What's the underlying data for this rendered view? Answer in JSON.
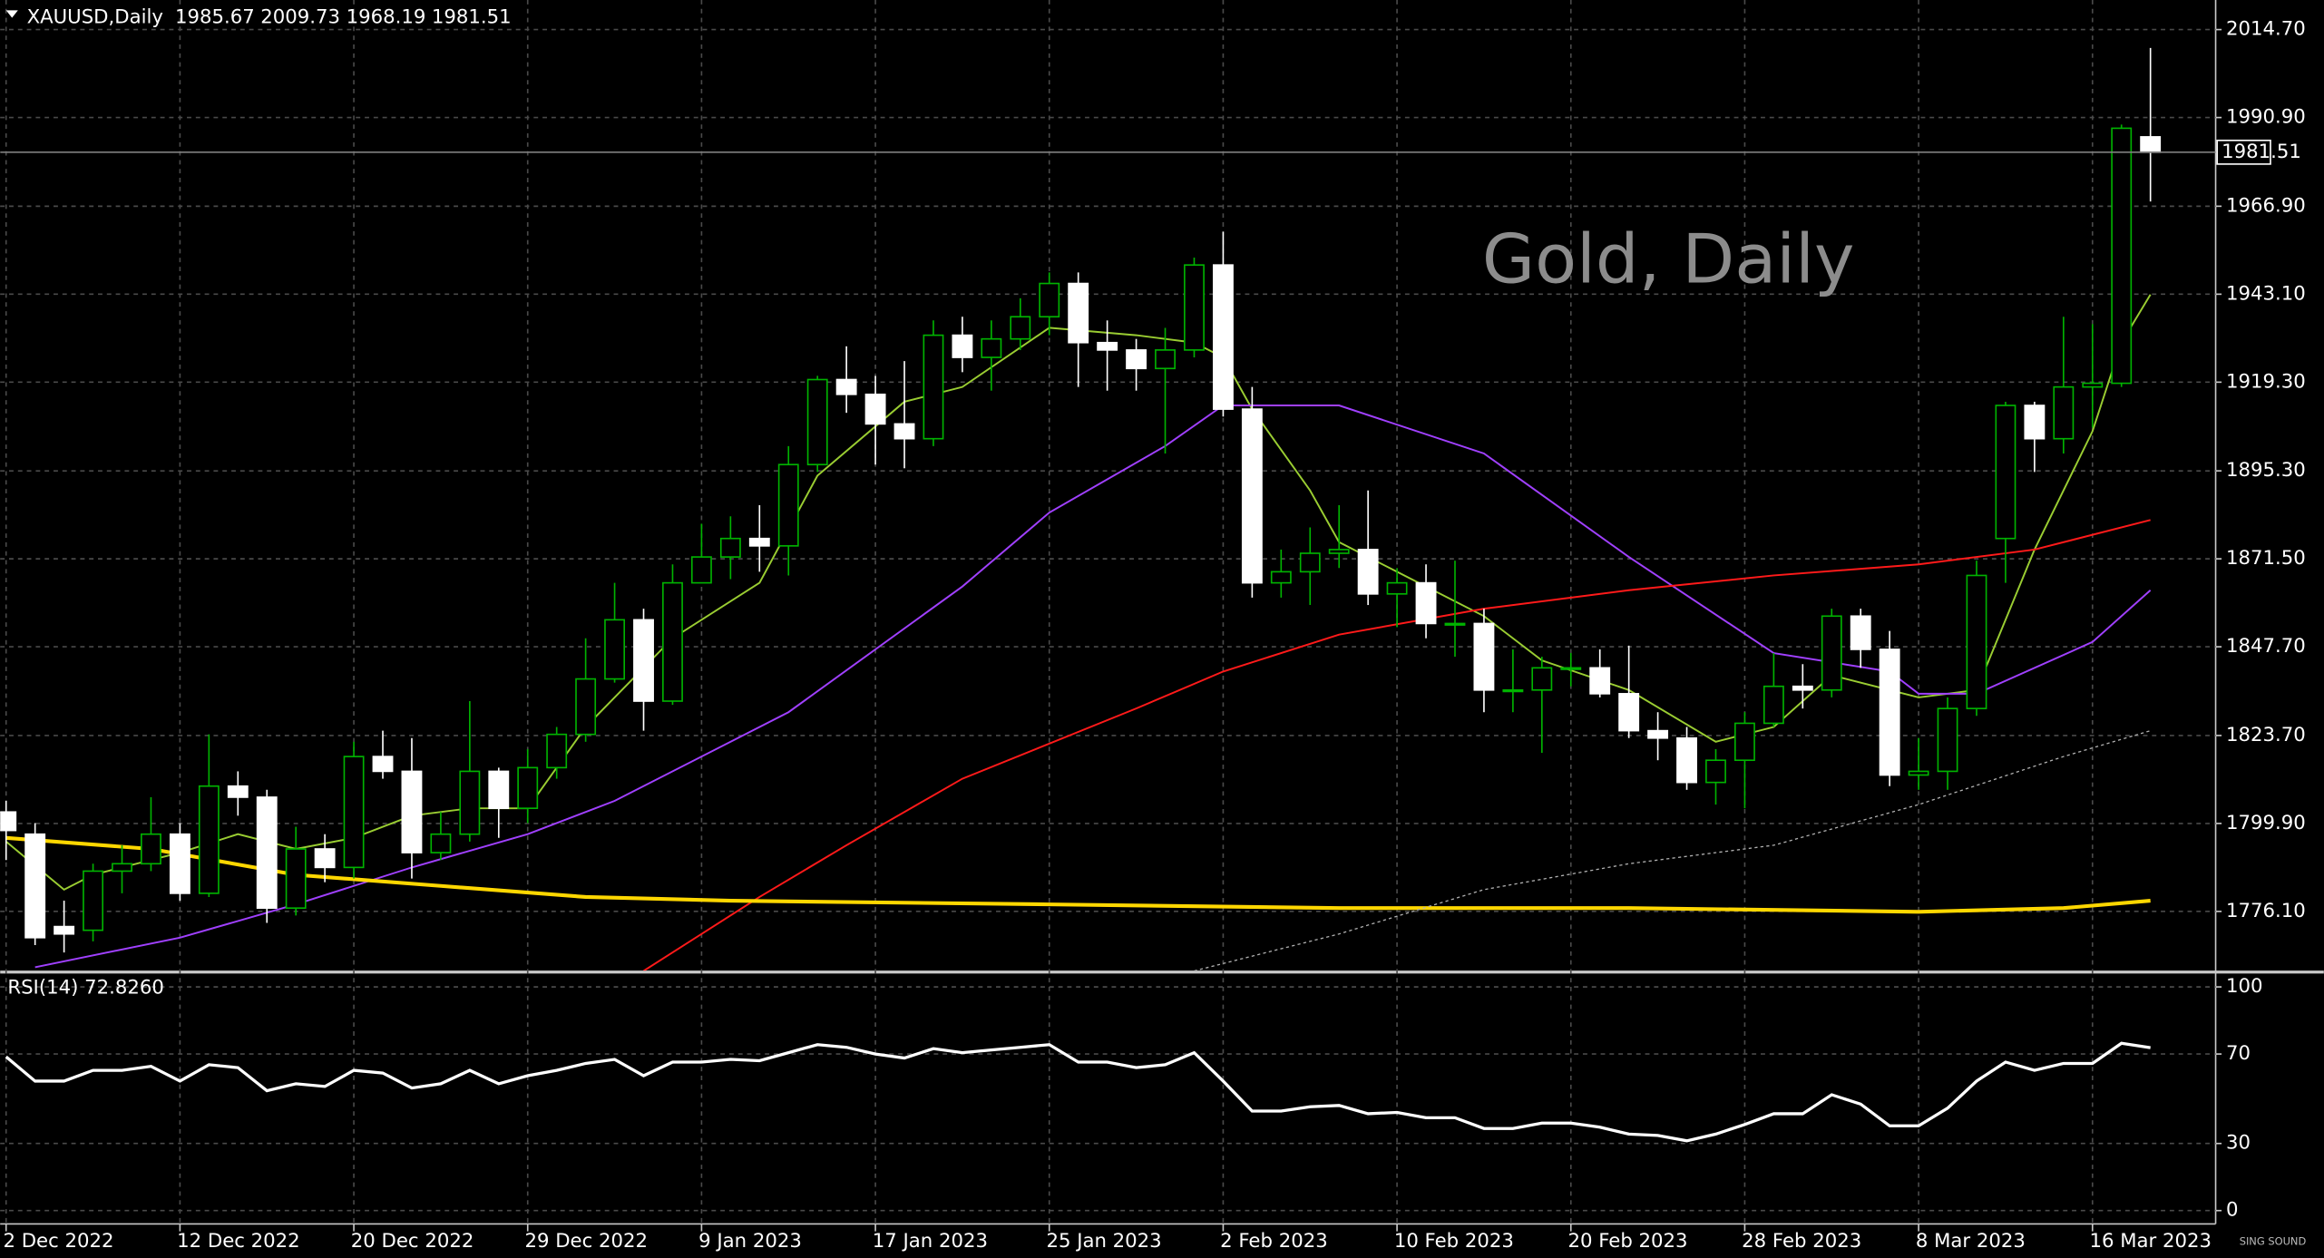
{
  "chart_data": {
    "type": "candlestick",
    "header": {
      "symbol": "XAUUSD,Daily"
    },
    "watermark": "Gold, Daily",
    "categories": [
      "2022-12-02",
      "2022-12-05",
      "2022-12-06",
      "2022-12-07",
      "2022-12-08",
      "2022-12-09",
      "2022-12-12",
      "2022-12-13",
      "2022-12-14",
      "2022-12-15",
      "2022-12-16",
      "2022-12-19",
      "2022-12-20",
      "2022-12-21",
      "2022-12-22",
      "2022-12-23",
      "2022-12-27",
      "2022-12-28",
      "2022-12-29",
      "2022-12-30",
      "2023-01-03",
      "2023-01-04",
      "2023-01-05",
      "2023-01-06",
      "2023-01-09",
      "2023-01-10",
      "2023-01-11",
      "2023-01-12",
      "2023-01-13",
      "2023-01-16",
      "2023-01-17",
      "2023-01-18",
      "2023-01-19",
      "2023-01-20",
      "2023-01-23",
      "2023-01-24",
      "2023-01-25",
      "2023-01-26",
      "2023-01-27",
      "2023-01-30",
      "2023-01-31",
      "2023-02-01",
      "2023-02-02",
      "2023-02-03",
      "2023-02-06",
      "2023-02-07",
      "2023-02-08",
      "2023-02-09",
      "2023-02-10",
      "2023-02-13",
      "2023-02-14",
      "2023-02-15",
      "2023-02-16",
      "2023-02-17",
      "2023-02-20",
      "2023-02-21",
      "2023-02-22",
      "2023-02-23",
      "2023-02-24",
      "2023-02-27",
      "2023-02-28",
      "2023-03-01",
      "2023-03-02",
      "2023-03-03",
      "2023-03-06",
      "2023-03-07",
      "2023-03-08",
      "2023-03-09",
      "2023-03-10",
      "2023-03-13",
      "2023-03-14",
      "2023-03-15",
      "2023-03-16",
      "2023-03-17",
      "2023-03-20"
    ],
    "open": [
      1803,
      1797,
      1772,
      1771,
      1787,
      1789,
      1797,
      1781,
      1810,
      1807,
      1777,
      1793,
      1788,
      1818,
      1814,
      1792,
      1797,
      1814,
      1804,
      1815,
      1824,
      1839,
      1855,
      1833,
      1865,
      1872,
      1877,
      1875,
      1897,
      1920,
      1916,
      1908,
      1904,
      1932,
      1926,
      1931,
      1937,
      1946,
      1930,
      1928,
      1923,
      1928,
      1951,
      1912,
      1865,
      1868,
      1873,
      1874,
      1862,
      1865,
      1854,
      1854,
      1836,
      1836,
      1842,
      1842,
      1835,
      1825,
      1823,
      1811,
      1817,
      1827,
      1837,
      1836,
      1856,
      1847,
      1813,
      1814,
      1831,
      1877,
      1913,
      1904,
      1918,
      1919,
      1985.67
    ],
    "high": [
      1806,
      1800,
      1779,
      1789,
      1794,
      1807,
      1800,
      1824,
      1814,
      1809,
      1799,
      1797,
      1822,
      1825,
      1823,
      1803,
      1833,
      1815,
      1820,
      1826,
      1850,
      1865,
      1858,
      1870,
      1881,
      1883,
      1886,
      1902,
      1921,
      1929,
      1921,
      1925,
      1936,
      1937,
      1936,
      1942,
      1949,
      1949,
      1936,
      1931,
      1934,
      1953,
      1960,
      1918,
      1874,
      1880,
      1886,
      1890,
      1869,
      1870,
      1871,
      1858,
      1847,
      1845,
      1846,
      1847,
      1848,
      1830,
      1826,
      1820,
      1830,
      1846,
      1843,
      1858,
      1858,
      1852,
      1823,
      1834,
      1871,
      1914,
      1914,
      1937,
      1935,
      1989,
      2009.73
    ],
    "low": [
      1790,
      1767,
      1765,
      1768,
      1781,
      1787,
      1779,
      1780,
      1802,
      1773,
      1775,
      1784,
      1785,
      1812,
      1785,
      1790,
      1795,
      1796,
      1800,
      1812,
      1822,
      1838,
      1825,
      1832,
      1865,
      1866,
      1868,
      1867,
      1895,
      1911,
      1897,
      1896,
      1902,
      1922,
      1917,
      1928,
      1932,
      1918,
      1917,
      1917,
      1900,
      1926,
      1910,
      1861,
      1861,
      1859,
      1869,
      1859,
      1853,
      1850,
      1845,
      1830,
      1830,
      1819,
      1837,
      1834,
      1823,
      1817,
      1809,
      1805,
      1804,
      1826,
      1831,
      1834,
      1842,
      1810,
      1809,
      1809,
      1829,
      1865,
      1895,
      1900,
      1907,
      1918,
      1968.19
    ],
    "close": [
      1798,
      1769,
      1770,
      1787,
      1789,
      1797,
      1781,
      1810,
      1807,
      1777,
      1793,
      1788,
      1818,
      1814,
      1792,
      1797,
      1814,
      1804,
      1815,
      1824,
      1839,
      1855,
      1833,
      1865,
      1872,
      1877,
      1875,
      1897,
      1920,
      1916,
      1908,
      1904,
      1932,
      1926,
      1931,
      1937,
      1946,
      1930,
      1928,
      1923,
      1928,
      1951,
      1912,
      1865,
      1868,
      1873,
      1874,
      1862,
      1865,
      1854,
      1854,
      1836,
      1836,
      1842,
      1842,
      1835,
      1825,
      1823,
      1811,
      1817,
      1827,
      1837,
      1836,
      1856,
      1847,
      1813,
      1814,
      1831,
      1867,
      1913,
      1904,
      1918,
      1919,
      1988,
      1981.51
    ],
    "up_color": "#00b300",
    "down_color": "#ffffff",
    "xticks": [
      {
        "value": "2022-12-02",
        "label": "2 Dec 2022"
      },
      {
        "value": "2022-12-12",
        "label": "12 Dec 2022"
      },
      {
        "value": "2022-12-20",
        "label": "20 Dec 2022"
      },
      {
        "value": "2022-12-29",
        "label": "29 Dec 2022"
      },
      {
        "value": "2023-01-09",
        "label": "9 Jan 2023"
      },
      {
        "value": "2023-01-17",
        "label": "17 Jan 2023"
      },
      {
        "value": "2023-01-25",
        "label": "25 Jan 2023"
      },
      {
        "value": "2023-02-02",
        "label": "2 Feb 2023"
      },
      {
        "value": "2023-02-10",
        "label": "10 Feb 2023"
      },
      {
        "value": "2023-02-20",
        "label": "20 Feb 2023"
      },
      {
        "value": "2023-02-28",
        "label": "28 Feb 2023"
      },
      {
        "value": "2023-03-08",
        "label": "8 Mar 2023"
      },
      {
        "value": "2023-03-16",
        "label": "16 Mar 2023"
      }
    ],
    "ylim": [
      1760.1,
      2022.7
    ],
    "yticks": [
      {
        "value": 2014.7,
        "label": "2014.70"
      },
      {
        "value": 1990.9,
        "label": "1990.90"
      },
      {
        "value": 1966.9,
        "label": "1966.90"
      },
      {
        "value": 1943.1,
        "label": "1943.10"
      },
      {
        "value": 1919.3,
        "label": "1919.30"
      },
      {
        "value": 1895.3,
        "label": "1895.30"
      },
      {
        "value": 1871.5,
        "label": "1871.50"
      },
      {
        "value": 1847.7,
        "label": "1847.70"
      },
      {
        "value": 1823.7,
        "label": "1823.70"
      },
      {
        "value": 1799.9,
        "label": "1799.90"
      },
      {
        "value": 1776.1,
        "label": "1776.10"
      }
    ],
    "grid": true,
    "current_price_line": true,
    "lines": [
      {
        "color": "#9acd32",
        "width": 1.2,
        "dashed": false,
        "x": [
          "2022-12-02",
          "2022-12-06",
          "2022-12-07",
          "2022-12-12",
          "2022-12-14",
          "2022-12-16",
          "2022-12-20",
          "2022-12-22",
          "2022-12-27",
          "2022-12-29",
          "2023-01-03",
          "2023-01-06",
          "2023-01-11",
          "2023-01-13",
          "2023-01-18",
          "2023-01-20",
          "2023-01-25",
          "2023-01-30",
          "2023-02-01",
          "2023-02-02",
          "2023-02-03",
          "2023-02-07",
          "2023-02-08",
          "2023-02-10",
          "2023-02-15",
          "2023-02-17",
          "2023-02-22",
          "2023-02-27",
          "2023-03-01",
          "2023-03-03",
          "2023-03-08",
          "2023-03-10",
          "2023-03-14",
          "2023-03-16",
          "2023-03-17",
          "2023-03-20"
        ],
        "values": [
          1795,
          1782,
          1786,
          1792,
          1797,
          1793,
          1796,
          1802,
          1804,
          1804,
          1826,
          1850,
          1865,
          1894,
          1914,
          1918,
          1934,
          1932,
          1930,
          1926,
          1912,
          1890,
          1876,
          1868,
          1856,
          1844,
          1836,
          1822,
          1826,
          1840,
          1834,
          1836,
          1874,
          1906,
          1930,
          1943
        ]
      },
      {
        "color": "#a040ff",
        "width": 1.2,
        "dashed": false,
        "x": [
          "2022-12-05",
          "2022-12-12",
          "2022-12-16",
          "2022-12-22",
          "2022-12-29",
          "2023-01-04",
          "2023-01-12",
          "2023-01-20",
          "2023-01-25",
          "2023-01-31",
          "2023-02-02",
          "2023-02-08",
          "2023-02-15",
          "2023-02-22",
          "2023-03-01",
          "2023-03-07",
          "2023-03-08",
          "2023-03-10",
          "2023-03-16",
          "2023-03-20"
        ],
        "values": [
          1761,
          1769,
          1778,
          1788,
          1797,
          1806,
          1830,
          1864,
          1884,
          1902,
          1913,
          1913,
          1900,
          1872,
          1846,
          1841,
          1835,
          1835,
          1849,
          1863
        ]
      },
      {
        "color": "#ff1a1a",
        "width": 1.2,
        "dashed": false,
        "x": [
          "2023-01-05",
          "2023-01-11",
          "2023-01-16",
          "2023-01-20",
          "2023-01-30",
          "2023-02-02",
          "2023-02-08",
          "2023-02-15",
          "2023-02-22",
          "2023-03-01",
          "2023-03-08",
          "2023-03-14",
          "2023-03-20"
        ],
        "values": [
          1760,
          1780,
          1794,
          1812,
          1831,
          1841,
          1851,
          1858,
          1863,
          1867,
          1870,
          1874,
          1882
        ]
      },
      {
        "color": "#ffd700",
        "width": 2.5,
        "dashed": false,
        "x": [
          "2022-12-02",
          "2022-12-09",
          "2022-12-16",
          "2022-12-23",
          "2023-01-03",
          "2023-01-10",
          "2023-01-25",
          "2023-02-08",
          "2023-02-22",
          "2023-03-08",
          "2023-03-15",
          "2023-03-20"
        ],
        "values": [
          1796,
          1793,
          1786,
          1783,
          1780,
          1779,
          1778,
          1777,
          1777,
          1776,
          1777,
          1779
        ]
      },
      {
        "color": "#b0b0b0",
        "width": 0.8,
        "dashed": true,
        "x": [
          "2023-02-01",
          "2023-02-08",
          "2023-02-15",
          "2023-02-22",
          "2023-03-01",
          "2023-03-08",
          "2023-03-15",
          "2023-03-20"
        ],
        "values": [
          1760,
          1770,
          1782,
          1789,
          1794,
          1805,
          1818,
          1825
        ]
      }
    ],
    "rsi": {
      "title": "RSI(14) 72.8260",
      "color": "#ffffff",
      "ylim": [
        -5.3,
        106
      ],
      "yticks": [
        100,
        70,
        30,
        0
      ],
      "values": [
        68.8,
        57.9,
        57.9,
        62.7,
        62.7,
        64.5,
        57.9,
        65.2,
        63.9,
        53.6,
        56.7,
        55.5,
        62.7,
        61.5,
        54.8,
        56.7,
        62.7,
        56.7,
        60.3,
        62.7,
        65.8,
        67.6,
        60.3,
        66.4,
        66.4,
        67.6,
        67,
        70.6,
        74.2,
        73,
        70,
        68.2,
        72.4,
        70.6,
        71.8,
        73,
        74.2,
        66.4,
        66.4,
        63.9,
        65.2,
        70.6,
        57.9,
        44.5,
        44.5,
        46.4,
        47,
        43.3,
        43.9,
        41.5,
        41.5,
        36.7,
        36.7,
        39.1,
        39.1,
        37.3,
        34.2,
        33.6,
        31.2,
        34.2,
        38.5,
        43.3,
        43.3,
        51.8,
        47.6,
        37.9,
        37.9,
        45.8,
        57.9,
        66.4,
        62.7,
        65.8,
        65.8,
        74.8,
        72.826
      ]
    }
  },
  "logo": "SING SOUND"
}
